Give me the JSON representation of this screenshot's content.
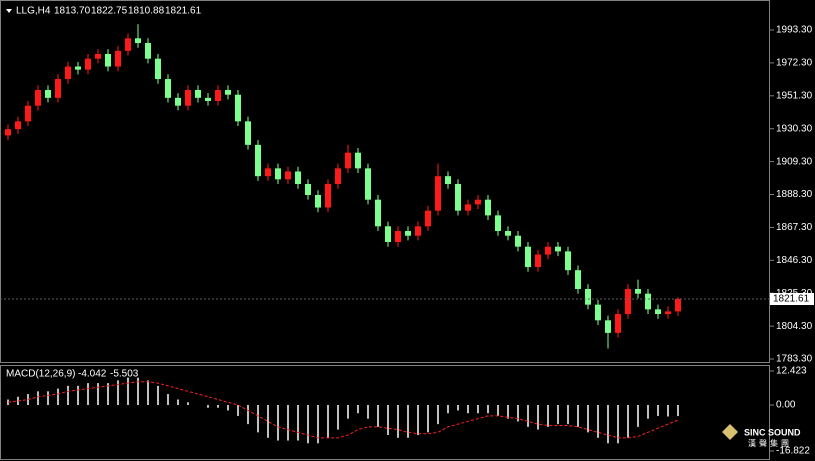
{
  "chart_data": {
    "type": "candlestick",
    "title": "LLG,H4",
    "ohlc_labels": [
      "1813.70",
      "1822.75",
      "1810.88",
      "1821.61"
    ],
    "last_label": "1821.61",
    "up_color": "#ff1a1a",
    "down_color": "#7dff8f",
    "open": [
      1926,
      1930,
      1935,
      1945,
      1955,
      1950,
      1962,
      1970,
      1968,
      1975,
      1978,
      1970,
      1980,
      1988,
      1985,
      1975,
      1962,
      1950,
      1945,
      1955,
      1950,
      1948,
      1955,
      1952,
      1935,
      1920,
      1900,
      1905,
      1898,
      1903,
      1895,
      1888,
      1880,
      1895,
      1905,
      1915,
      1905,
      1885,
      1868,
      1858,
      1865,
      1862,
      1868,
      1878,
      1900,
      1895,
      1878,
      1882,
      1885,
      1875,
      1865,
      1862,
      1855,
      1842,
      1850,
      1855,
      1852,
      1840,
      1828,
      1818,
      1808,
      1800,
      1812,
      1828,
      1825,
      1815,
      1812,
      1813.7
    ],
    "high": [
      1933,
      1938,
      1948,
      1958,
      1958,
      1965,
      1973,
      1973,
      1978,
      1981,
      1981,
      1983,
      1991,
      1997,
      1988,
      1978,
      1965,
      1953,
      1958,
      1958,
      1953,
      1958,
      1958,
      1955,
      1938,
      1923,
      1908,
      1908,
      1906,
      1906,
      1898,
      1891,
      1898,
      1908,
      1920,
      1918,
      1908,
      1888,
      1871,
      1868,
      1868,
      1871,
      1881,
      1908,
      1903,
      1898,
      1885,
      1888,
      1888,
      1878,
      1868,
      1865,
      1858,
      1853,
      1858,
      1858,
      1855,
      1843,
      1831,
      1821,
      1811,
      1815,
      1831,
      1834,
      1828,
      1818,
      1817,
      1822.75
    ],
    "low": [
      1923,
      1927,
      1932,
      1942,
      1947,
      1947,
      1959,
      1965,
      1965,
      1972,
      1967,
      1967,
      1977,
      1982,
      1972,
      1959,
      1947,
      1942,
      1942,
      1947,
      1945,
      1945,
      1949,
      1932,
      1917,
      1897,
      1897,
      1895,
      1895,
      1892,
      1885,
      1877,
      1877,
      1892,
      1902,
      1902,
      1882,
      1865,
      1855,
      1855,
      1859,
      1859,
      1865,
      1875,
      1892,
      1875,
      1875,
      1879,
      1872,
      1862,
      1859,
      1852,
      1839,
      1839,
      1847,
      1849,
      1837,
      1825,
      1815,
      1805,
      1790,
      1797,
      1809,
      1822,
      1812,
      1809,
      1809,
      1810.88
    ],
    "close": [
      1930,
      1935,
      1945,
      1955,
      1950,
      1962,
      1970,
      1968,
      1975,
      1978,
      1970,
      1980,
      1988,
      1985,
      1975,
      1962,
      1950,
      1945,
      1955,
      1950,
      1948,
      1955,
      1952,
      1935,
      1920,
      1900,
      1905,
      1898,
      1903,
      1895,
      1888,
      1880,
      1895,
      1905,
      1915,
      1905,
      1885,
      1868,
      1858,
      1865,
      1862,
      1868,
      1878,
      1900,
      1895,
      1878,
      1882,
      1885,
      1875,
      1865,
      1862,
      1855,
      1842,
      1850,
      1855,
      1852,
      1840,
      1828,
      1818,
      1808,
      1800,
      1812,
      1828,
      1825,
      1815,
      1812,
      1813.7,
      1821.61
    ],
    "ylim": [
      1781.4,
      2009.9
    ],
    "yticks": [
      {
        "value": 1783.3,
        "label": "1783.30"
      },
      {
        "value": 1804.3,
        "label": "1804.30"
      },
      {
        "value": 1825.3,
        "label": "1825.30"
      },
      {
        "value": 1846.3,
        "label": "1846.30"
      },
      {
        "value": 1867.3,
        "label": "1867.30"
      },
      {
        "value": 1888.3,
        "label": "1888.30"
      },
      {
        "value": 1909.3,
        "label": "1909.30"
      },
      {
        "value": 1930.3,
        "label": "1930.30"
      },
      {
        "value": 1951.3,
        "label": "1951.30"
      },
      {
        "value": 1972.3,
        "label": "1972.30"
      },
      {
        "value": 1993.3,
        "label": "1993.30"
      }
    ],
    "macd_title": "MACD(12,26,9)",
    "macd_labels": [
      "-4.042",
      "-5.503"
    ],
    "macd_color": "#ffffff",
    "signal_color": "#ff2020",
    "macd": [
      2,
      3,
      4,
      5,
      5,
      6,
      7,
      7,
      8,
      8,
      8,
      9,
      10,
      10,
      9,
      7,
      4,
      2,
      1,
      0,
      -1,
      -1,
      -2,
      -4,
      -7,
      -10,
      -12,
      -13,
      -13,
      -13,
      -14,
      -14,
      -12,
      -9,
      -5,
      -3,
      -5,
      -8,
      -11,
      -12,
      -12,
      -11,
      -10,
      -7,
      -3,
      -2,
      -3,
      -3,
      -3,
      -4,
      -5,
      -6,
      -8,
      -9,
      -8,
      -7,
      -7,
      -8,
      -10,
      -12,
      -14,
      -14,
      -12,
      -8,
      -5,
      -4,
      -4.2,
      -4.042
    ],
    "signal": [
      1,
      1.5,
      2,
      3,
      3.5,
      4,
      5,
      5.5,
      6,
      6.5,
      7,
      7.5,
      8,
      8.5,
      8.5,
      8,
      7,
      6,
      5,
      4,
      3,
      2,
      1,
      0,
      -2,
      -4,
      -6,
      -8,
      -9,
      -10,
      -11,
      -12,
      -12,
      -12,
      -11,
      -9,
      -8,
      -8,
      -8.5,
      -9,
      -10,
      -10.5,
      -10.5,
      -10,
      -8,
      -7,
      -6,
      -5,
      -4,
      -4,
      -4.5,
      -5,
      -6,
      -7,
      -7.5,
      -7.5,
      -7.5,
      -8,
      -9,
      -10,
      -11,
      -12,
      -12,
      -11.5,
      -10,
      -8.5,
      -7,
      -5.503
    ],
    "y2lim": [
      -19.38,
      13.89
    ],
    "y2ticks": [
      12.423,
      {
        "value": 0,
        "label": "0.00"
      },
      -16.822
    ]
  },
  "watermark": {
    "brand": "SINC SOUND",
    "sub": "漢聲集團"
  }
}
